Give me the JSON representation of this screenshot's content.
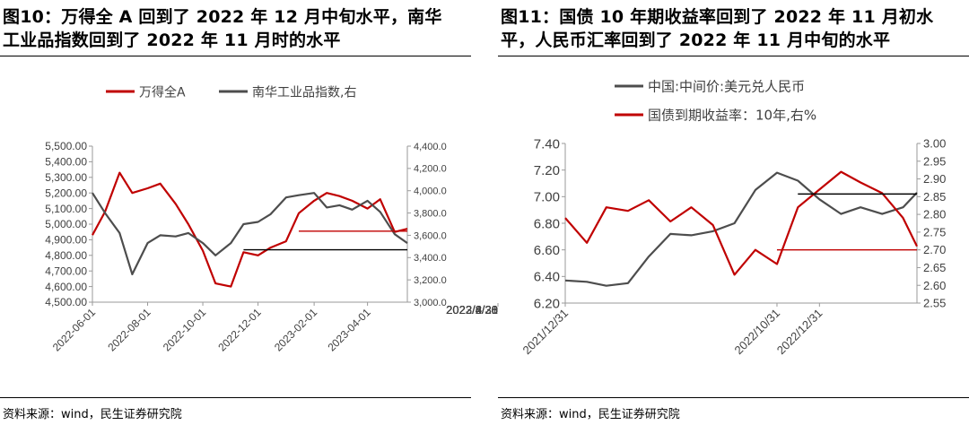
{
  "left": {
    "title": "图10：万得全 A 回到了 2022 年 12 月中旬水平，南华工业品指数回到了 2022 年 11 月时的水平",
    "title_line1": "图10：万得全 A 回到了 2022 年 12 月中旬水平，南华",
    "title_line2": "工业品指数回到了 2022 年 11 月时的水平",
    "source": "资料来源：wind，民生证券研究院"
  },
  "right": {
    "title": "图11：国债 10 年期收益率回到了 2022 年 11 月初水平，人民币汇率回到了 2022 年 11 月中旬的水平",
    "title_line1": "图11：国债 10 年期收益率回到了 2022 年 11 月初水",
    "title_line2": "平，人民币汇率回到了 2022 年 11 月中旬的水平",
    "source": "资料来源：wind，民生证券研究院"
  },
  "chart_data": [
    {
      "type": "line",
      "legend_position": "top",
      "x": [
        "2022-06-01",
        "2022-06-15",
        "2022-07-01",
        "2022-07-15",
        "2022-08-01",
        "2022-08-15",
        "2022-09-01",
        "2022-09-15",
        "2022-10-01",
        "2022-10-15",
        "2022-11-01",
        "2022-11-15",
        "2022-12-01",
        "2022-12-15",
        "2023-01-01",
        "2023-01-15",
        "2023-02-01",
        "2023-02-15",
        "2023-03-01",
        "2023-03-15",
        "2023-04-01",
        "2023-04-15",
        "2023-05-01",
        "2023-05-15"
      ],
      "x_tick_labels": [
        "2022-06-01",
        "2022-08-01",
        "2022-10-01",
        "2022-12-01",
        "2023-02-01",
        "2023-04-01"
      ],
      "y_left_ticks": [
        "4,500.00",
        "4,600.00",
        "4,700.00",
        "4,800.00",
        "4,900.00",
        "5,000.00",
        "5,100.00",
        "5,200.00",
        "5,300.00",
        "5,400.00",
        "5,500.00"
      ],
      "y_right_ticks": [
        "3,000.0",
        "3,200.0",
        "3,400.0",
        "3,600.0",
        "3,800.0",
        "4,000.0",
        "4,200.0",
        "4,400.0"
      ],
      "y_left_range": [
        4500,
        5500
      ],
      "y_right_range": [
        3000,
        4400
      ],
      "series": [
        {
          "name": "万得全A",
          "axis": "left",
          "color": "#c00000",
          "values": [
            4930,
            5080,
            5330,
            5200,
            5230,
            5260,
            5130,
            5000,
            4830,
            4620,
            4600,
            4820,
            4800,
            4850,
            4890,
            5070,
            5150,
            5200,
            5180,
            5150,
            5100,
            5160,
            4950,
            4970
          ]
        },
        {
          "name": "南华工业品指数,右",
          "axis": "right",
          "color": "#4d4d4d",
          "values": [
            3980,
            3800,
            3620,
            3250,
            3530,
            3600,
            3590,
            3620,
            3530,
            3420,
            3530,
            3700,
            3720,
            3790,
            3940,
            3960,
            3980,
            3850,
            3870,
            3830,
            3910,
            3810,
            3610,
            3530
          ]
        }
      ],
      "reference_lines": [
        {
          "color": "#c00000",
          "value": 4955,
          "axis": "left",
          "from": "2023-01-15",
          "to": "2023-05-15"
        },
        {
          "color": "#000000",
          "value": 3470,
          "axis": "right",
          "from": "2022-11-15",
          "to": "2023-05-15"
        }
      ]
    },
    {
      "type": "line",
      "legend_position": "top-left",
      "x": [
        "2021-12-31",
        "2022-01-31",
        "2022-02-28",
        "2022-03-31",
        "2022-04-30",
        "2022-05-31",
        "2022-06-30",
        "2022-07-31",
        "2022-08-31",
        "2022-09-30",
        "2022-10-31",
        "2022-11-30",
        "2022-12-31",
        "2023-01-31",
        "2023-02-28",
        "2023-03-31",
        "2023-04-30",
        "2023-05-20"
      ],
      "x_tick_labels": [
        "2021/12/31",
        "2022/2/28",
        "2022/4/30",
        "2022/6/30",
        "2022/8/31",
        "2022/10/31",
        "2022/12/31",
        "2023/2/28",
        "2023/4/30"
      ],
      "y_left_ticks": [
        "6.20",
        "6.40",
        "6.60",
        "6.80",
        "7.00",
        "7.20",
        "7.40"
      ],
      "y_right_ticks": [
        "2.55",
        "2.60",
        "2.65",
        "2.70",
        "2.75",
        "2.80",
        "2.85",
        "2.90",
        "2.95",
        "3.00"
      ],
      "y_left_range": [
        6.2,
        7.4
      ],
      "y_right_range": [
        2.55,
        3.0
      ],
      "series": [
        {
          "name": "中国:中间价:美元兑人民币",
          "axis": "left",
          "color": "#4d4d4d",
          "values": [
            6.37,
            6.36,
            6.33,
            6.35,
            6.55,
            6.72,
            6.71,
            6.74,
            6.8,
            7.05,
            7.18,
            7.12,
            6.98,
            6.87,
            6.92,
            6.87,
            6.92,
            7.03
          ]
        },
        {
          "name": "国债到期收益率：10年,右%",
          "axis": "right",
          "color": "#c00000",
          "values": [
            2.79,
            2.72,
            2.82,
            2.81,
            2.84,
            2.78,
            2.82,
            2.77,
            2.63,
            2.7,
            2.66,
            2.82,
            2.87,
            2.92,
            2.89,
            2.86,
            2.79,
            2.71
          ]
        }
      ],
      "reference_lines": [
        {
          "color": "#c00000",
          "value": 2.7,
          "axis": "right",
          "from": "2022-10-31",
          "to": "2023-05-20"
        },
        {
          "color": "#000000",
          "value": 7.02,
          "axis": "left",
          "from": "2022-11-30",
          "to": "2023-05-20"
        }
      ]
    }
  ]
}
